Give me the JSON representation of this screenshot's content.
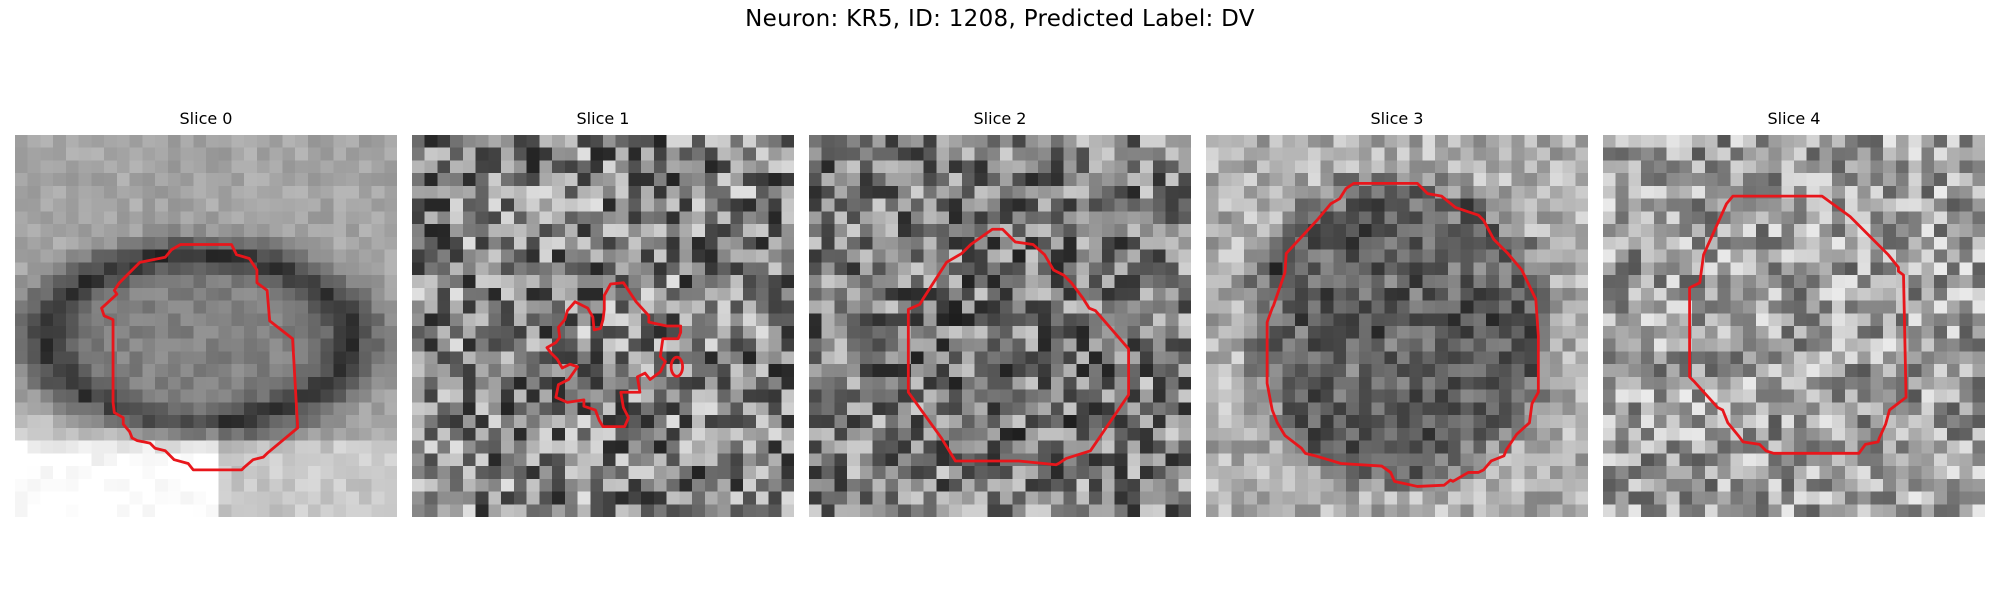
{
  "figure": {
    "title": "Neuron: KR5, ID: 1208, Predicted Label: DV"
  },
  "panels": [
    {
      "title": "Slice 0",
      "image": "grayscale-patch-blurred-ring"
    },
    {
      "title": "Slice 1",
      "image": "grayscale-patch-noisy"
    },
    {
      "title": "Slice 2",
      "image": "grayscale-patch-noisy"
    },
    {
      "title": "Slice 3",
      "image": "grayscale-patch-dark-blob"
    },
    {
      "title": "Slice 4",
      "image": "grayscale-patch-light-noise"
    }
  ],
  "colors": {
    "contour": "#e8161b",
    "background": "#ffffff"
  }
}
